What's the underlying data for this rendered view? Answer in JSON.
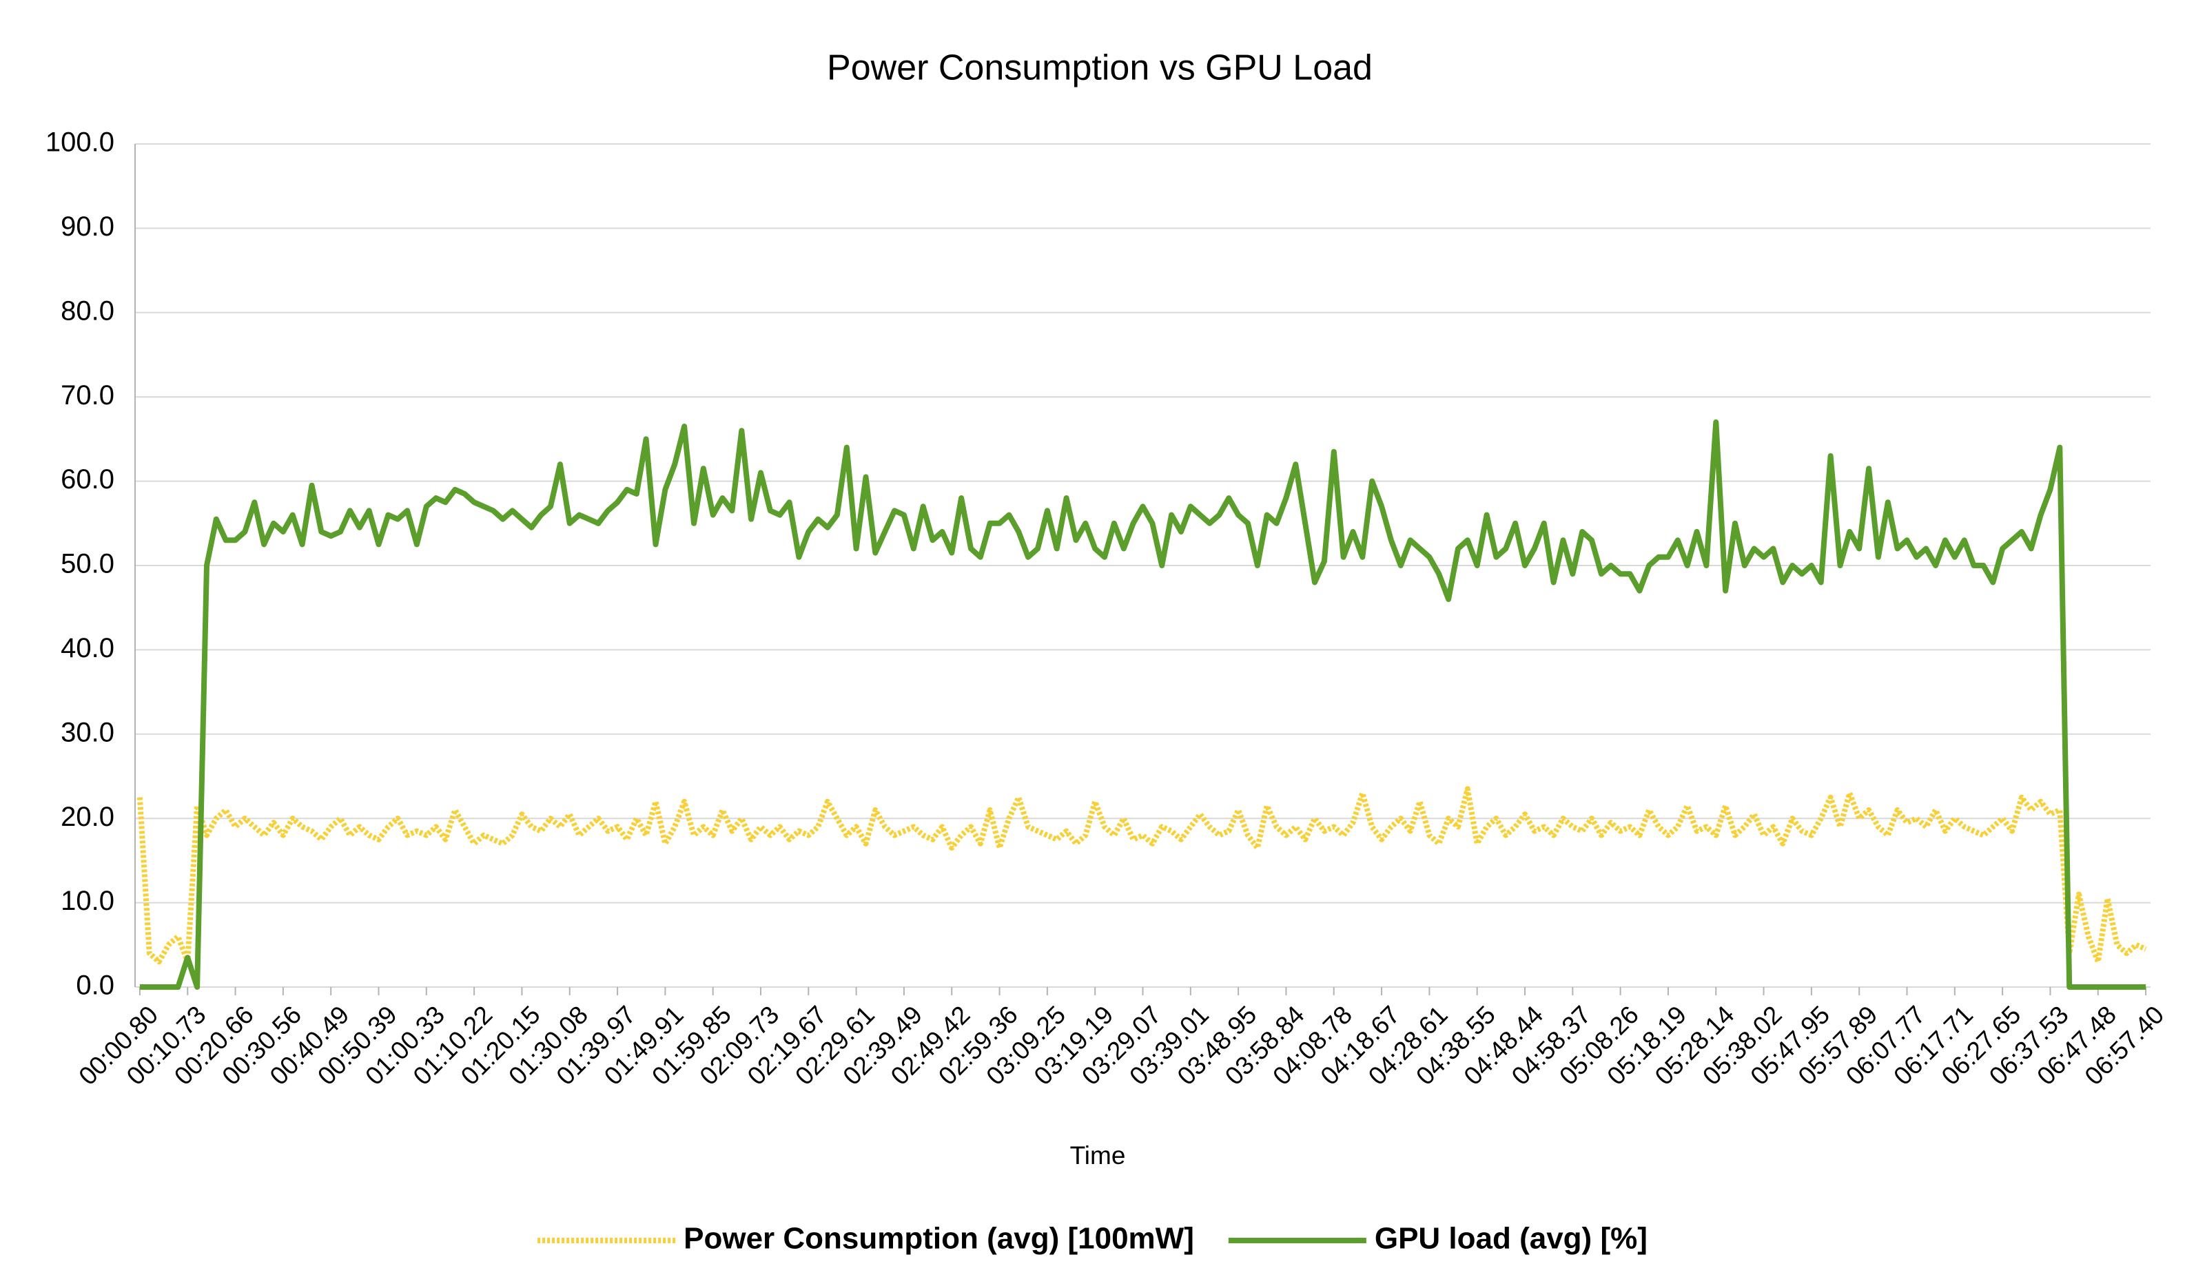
{
  "chart_data": {
    "type": "line",
    "title": "Power Consumption vs GPU Load",
    "x_label": "Time",
    "categories": [
      "00:00.80",
      null,
      null,
      null,
      null,
      "00:10.73",
      null,
      null,
      null,
      null,
      "00:20.66",
      null,
      null,
      null,
      null,
      "00:30.56",
      null,
      null,
      null,
      null,
      "00:40.49",
      null,
      null,
      null,
      null,
      "00:50.39",
      null,
      null,
      null,
      null,
      "01:00.33",
      null,
      null,
      null,
      null,
      "01:10.22",
      null,
      null,
      null,
      null,
      "01:20.15",
      null,
      null,
      null,
      null,
      "01:30.08",
      null,
      null,
      null,
      null,
      "01:39.97",
      null,
      null,
      null,
      null,
      "01:49.91",
      null,
      null,
      null,
      null,
      "01:59.85",
      null,
      null,
      null,
      null,
      "02:09.73",
      null,
      null,
      null,
      null,
      "02:19.67",
      null,
      null,
      null,
      null,
      "02:29.61",
      null,
      null,
      null,
      null,
      "02:39.49",
      null,
      null,
      null,
      null,
      "02:49.42",
      null,
      null,
      null,
      null,
      "02:59.36",
      null,
      null,
      null,
      null,
      "03:09.25",
      null,
      null,
      null,
      null,
      "03:19.19",
      null,
      null,
      null,
      null,
      "03:29.07",
      null,
      null,
      null,
      null,
      "03:39.01",
      null,
      null,
      null,
      null,
      "03:48.95",
      null,
      null,
      null,
      null,
      "03:58.84",
      null,
      null,
      null,
      null,
      "04:08.78",
      null,
      null,
      null,
      null,
      "04:18.67",
      null,
      null,
      null,
      null,
      "04:28.61",
      null,
      null,
      null,
      null,
      "04:38.55",
      null,
      null,
      null,
      null,
      "04:48.44",
      null,
      null,
      null,
      null,
      "04:58.37",
      null,
      null,
      null,
      null,
      "05:08.26",
      null,
      null,
      null,
      null,
      "05:18.19",
      null,
      null,
      null,
      null,
      "05:28.14",
      null,
      null,
      null,
      null,
      "05:38.02",
      null,
      null,
      null,
      null,
      "05:47.95",
      null,
      null,
      null,
      null,
      "05:57.89",
      null,
      null,
      null,
      null,
      "06:07.77",
      null,
      null,
      null,
      null,
      "06:17.71",
      null,
      null,
      null,
      null,
      "06:27.65",
      null,
      null,
      null,
      null,
      "06:37.53",
      null,
      null,
      null,
      null,
      "06:47.48",
      null,
      null,
      null,
      null,
      "06:57.40"
    ],
    "series": [
      {
        "name": "Power Consumption (avg) [100mW]",
        "color": "#f7d035",
        "dashed": true,
        "values": [
          22.5,
          4,
          3,
          5,
          6,
          3,
          21.5,
          18,
          20,
          21,
          19,
          20,
          19,
          18,
          19.5,
          18,
          20,
          19,
          18.5,
          17.5,
          19,
          20,
          18,
          19,
          18,
          17.5,
          19,
          20,
          18,
          18.5,
          18,
          19,
          17.5,
          21,
          19,
          17,
          18,
          17.5,
          17,
          18,
          20.5,
          19,
          18.5,
          20,
          19,
          20.5,
          18,
          19,
          20,
          18.5,
          19,
          17.5,
          20,
          18,
          22,
          17,
          19,
          22,
          18,
          19,
          18,
          21,
          18.5,
          20,
          17.5,
          19,
          18,
          19,
          17.5,
          18.5,
          18,
          19,
          22,
          20,
          18,
          19,
          17,
          21,
          19,
          18,
          18.5,
          19,
          18,
          17.5,
          19,
          16.5,
          18,
          19,
          17,
          21,
          16.5,
          20,
          22.5,
          19,
          18.5,
          18,
          17.5,
          18.5,
          17,
          18,
          22,
          19,
          18,
          20,
          17.5,
          18,
          17,
          19,
          18.5,
          17.5,
          19,
          20.5,
          19,
          18,
          18.5,
          21,
          18,
          16.5,
          21.5,
          19,
          18,
          19,
          17.5,
          20,
          18.5,
          19,
          18,
          19.5,
          23,
          19,
          17.5,
          19,
          20,
          18.5,
          22,
          18,
          17,
          20,
          19,
          23.5,
          17,
          19,
          20,
          18,
          19,
          20.5,
          18.5,
          19,
          18,
          20,
          19,
          18.5,
          20,
          18,
          19.5,
          18.5,
          19,
          18,
          21,
          19,
          18,
          19,
          21.5,
          18.5,
          19,
          18,
          21.5,
          18,
          19,
          20.5,
          18,
          19,
          17,
          20,
          18.5,
          18,
          20,
          22.5,
          19,
          23,
          20,
          21,
          19,
          18,
          21,
          19.5,
          20,
          19,
          21,
          18.5,
          20,
          19,
          18.5,
          18,
          19,
          20,
          18.5,
          22.5,
          21,
          22,
          20.5,
          21,
          4,
          11,
          6,
          3,
          10.5,
          5,
          4,
          5,
          4.5
        ]
      },
      {
        "name": "GPU load (avg) [%]",
        "color": "#5b9e2c",
        "dashed": false,
        "values": [
          0,
          0,
          0,
          0,
          0,
          3.5,
          0,
          50,
          55.5,
          53,
          53,
          54,
          57.5,
          52.5,
          55,
          54,
          56,
          52.5,
          59.5,
          54,
          53.5,
          54,
          56.5,
          54.5,
          56.5,
          52.5,
          56,
          55.5,
          56.5,
          52.5,
          57,
          58,
          57.5,
          59,
          58.5,
          57.5,
          57,
          56.5,
          55.5,
          56.5,
          55.5,
          54.5,
          56,
          57,
          62,
          55,
          56,
          55.5,
          55,
          56.5,
          57.5,
          59,
          58.5,
          65,
          52.5,
          59,
          62,
          66.5,
          55,
          61.5,
          56,
          58,
          56.5,
          66,
          55.5,
          61,
          56.5,
          56,
          57.5,
          51,
          54,
          55.5,
          54.5,
          56,
          64,
          52,
          60.5,
          51.5,
          54,
          56.5,
          56,
          52,
          57,
          53,
          54,
          51.5,
          58,
          52,
          51,
          55,
          55,
          56,
          54,
          51,
          52,
          56.5,
          52,
          58,
          53,
          55,
          52,
          51,
          55,
          52,
          55,
          57,
          55,
          50,
          56,
          54,
          57,
          56,
          55,
          56,
          58,
          56,
          55,
          50,
          56,
          55,
          58,
          62,
          55,
          48,
          50.5,
          63.5,
          51,
          54,
          51,
          60,
          57,
          53,
          50,
          53,
          52,
          51,
          49,
          46,
          52,
          53,
          50,
          56,
          51,
          52,
          55,
          50,
          52,
          55,
          48,
          53,
          49,
          54,
          53,
          49,
          50,
          49,
          49,
          47,
          50,
          51,
          51,
          53,
          50,
          54,
          50,
          67,
          47,
          55,
          50,
          52,
          51,
          52,
          48,
          50,
          49,
          50,
          48,
          63,
          50,
          54,
          52,
          61.5,
          51,
          57.5,
          52,
          53,
          51,
          52,
          50,
          53,
          51,
          53,
          50,
          50,
          48,
          52,
          53,
          54,
          52,
          56,
          59,
          64,
          0,
          0,
          0,
          0,
          0,
          0,
          0,
          0,
          0
        ]
      }
    ],
    "ylim": [
      0,
      100
    ],
    "yticks": [
      {
        "value": 0,
        "label": "0.0"
      },
      {
        "value": 10,
        "label": "10.0"
      },
      {
        "value": 20,
        "label": "20.0"
      },
      {
        "value": 30,
        "label": "30.0"
      },
      {
        "value": 40,
        "label": "40.0"
      },
      {
        "value": 50,
        "label": "50.0"
      },
      {
        "value": 60,
        "label": "60.0"
      },
      {
        "value": 70,
        "label": "70.0"
      },
      {
        "value": 80,
        "label": "80.0"
      },
      {
        "value": 90,
        "label": "90.0"
      },
      {
        "value": 100,
        "label": "100.0"
      }
    ],
    "grid": true,
    "legend": "bottom"
  }
}
